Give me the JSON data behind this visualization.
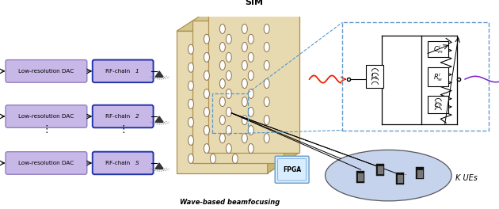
{
  "bg_color": "#ffffff",
  "dac_box_color": "#c8b8e8",
  "dac_box_edge": "#9080c0",
  "rf_box_color": "#c8b8e8",
  "rf_box_edge": "#2233aa",
  "dac_labels": [
    "Low-resolution DAC",
    "Low-resolution DAC",
    "Low-resolution DAC"
  ],
  "rf_label_base": "RF-chain ",
  "rf_label_iter": [
    "1",
    "2",
    "S"
  ],
  "sim_panel_color": "#e8dab0",
  "sim_panel_edge": "#b09050",
  "sim_top_color": "#d4c890",
  "sim_right_color": "#c8b870",
  "circuit_bg": "#ffffff",
  "circuit_edge": "#6699cc",
  "ue_ellipse_color": "#b8c8e8",
  "ue_text": "K UEs",
  "fpga_color": "#d8eeff",
  "fpga_edge": "#6699cc",
  "wave_text": "Wave-based beamfocusing",
  "sim_label": "SIM",
  "red_wave_color": "#ee2200",
  "purple_wave_color": "#7722cc"
}
